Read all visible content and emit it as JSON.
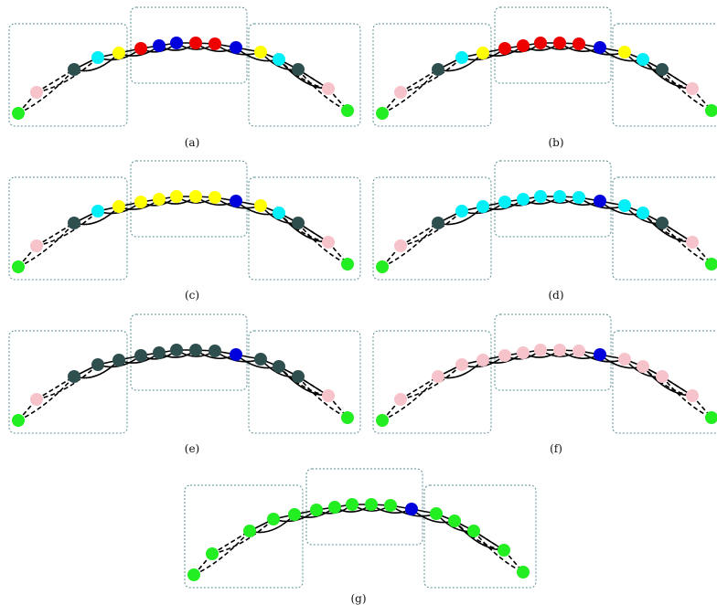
{
  "colors": {
    "green": "#22ee22",
    "pink": "#f6c3cb",
    "dark": "#2f4f4f",
    "cyan": "#00f0f8",
    "yellow": "#ffff00",
    "red": "#ee0000",
    "blue": "#0000dd"
  },
  "panels": [
    {
      "caption": "(a)",
      "nodes": [
        "green",
        "pink",
        "dark",
        "cyan",
        "yellow",
        "red",
        "blue",
        "blue",
        "red",
        "red",
        "blue",
        "yellow",
        "cyan",
        "dark",
        "pink",
        "green"
      ]
    },
    {
      "caption": "(b)",
      "nodes": [
        "green",
        "pink",
        "dark",
        "cyan",
        "yellow",
        "red",
        "red",
        "red",
        "red",
        "red",
        "blue",
        "yellow",
        "cyan",
        "dark",
        "pink",
        "green"
      ]
    },
    {
      "caption": "(c)",
      "nodes": [
        "green",
        "pink",
        "dark",
        "cyan",
        "yellow",
        "yellow",
        "yellow",
        "yellow",
        "yellow",
        "yellow",
        "blue",
        "yellow",
        "cyan",
        "dark",
        "pink",
        "green"
      ]
    },
    {
      "caption": "(d)",
      "nodes": [
        "green",
        "pink",
        "dark",
        "cyan",
        "cyan",
        "cyan",
        "cyan",
        "cyan",
        "cyan",
        "cyan",
        "blue",
        "cyan",
        "cyan",
        "dark",
        "pink",
        "green"
      ]
    },
    {
      "caption": "(e)",
      "nodes": [
        "green",
        "pink",
        "dark",
        "dark",
        "dark",
        "dark",
        "dark",
        "dark",
        "dark",
        "dark",
        "blue",
        "dark",
        "dark",
        "dark",
        "pink",
        "green"
      ]
    },
    {
      "caption": "(f)",
      "nodes": [
        "green",
        "pink",
        "pink",
        "pink",
        "pink",
        "pink",
        "pink",
        "pink",
        "pink",
        "pink",
        "blue",
        "pink",
        "pink",
        "pink",
        "pink",
        "green"
      ]
    },
    {
      "caption": "(g)",
      "nodes": [
        "green",
        "green",
        "green",
        "green",
        "green",
        "green",
        "green",
        "green",
        "green",
        "green",
        "blue",
        "green",
        "green",
        "green",
        "green",
        "green"
      ]
    }
  ]
}
